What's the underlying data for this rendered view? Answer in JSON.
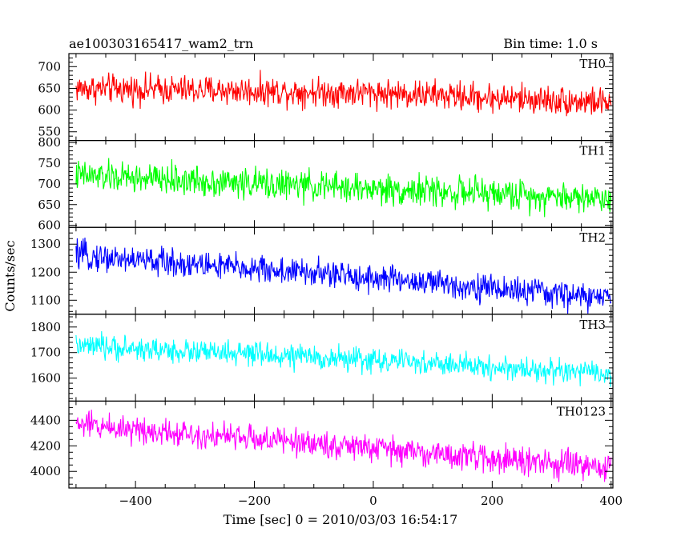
{
  "chart_data": {
    "type": "line",
    "title_left": "ae100303165417_wam2_trn",
    "title_right": "Bin time: 1.0 s",
    "xlabel": "Time [sec] 0 = 2010/03/03 16:54:17",
    "ylabel": "Counts/sec",
    "xlim": [
      -512,
      403
    ],
    "x_ticks": [
      -400,
      -200,
      0,
      200,
      400
    ],
    "x_tick_labels": [
      "−400",
      "−200",
      "0",
      "200",
      "400"
    ],
    "x_minor_step": 50,
    "grid": false,
    "legend": "none",
    "data_x_range": [
      -500,
      400
    ],
    "panels": [
      {
        "name": "TH0",
        "color": "#ff0000",
        "ylim": [
          530,
          730
        ],
        "ticks": [
          550,
          600,
          650,
          700
        ],
        "minor_step": 10,
        "trend": [
          [
            -500,
            650
          ],
          [
            0,
            640
          ],
          [
            400,
            617
          ]
        ],
        "spread": 50
      },
      {
        "name": "TH1",
        "color": "#00ff00",
        "ylim": [
          595,
          805
        ],
        "ticks": [
          600,
          650,
          700,
          750,
          800
        ],
        "minor_step": 10,
        "trend": [
          [
            -500,
            720
          ],
          [
            0,
            688
          ],
          [
            400,
            665
          ]
        ],
        "spread": 55
      },
      {
        "name": "TH2",
        "color": "#0000ff",
        "ylim": [
          1050,
          1360
        ],
        "ticks": [
          1100,
          1200,
          1300
        ],
        "minor_step": 20,
        "trend": [
          [
            -500,
            1260
          ],
          [
            0,
            1180
          ],
          [
            400,
            1105
          ]
        ],
        "spread": 75
      },
      {
        "name": "TH3",
        "color": "#00ffff",
        "ylim": [
          1510,
          1850
        ],
        "ticks": [
          1600,
          1700,
          1800
        ],
        "minor_step": 20,
        "trend": [
          [
            -500,
            1725
          ],
          [
            0,
            1670
          ],
          [
            400,
            1615
          ]
        ],
        "spread": 70
      },
      {
        "name": "TH0123",
        "color": "#ff00ff",
        "ylim": [
          3870,
          4550
        ],
        "ticks": [
          4000,
          4200,
          4400
        ],
        "minor_step": 50,
        "trend": [
          [
            -500,
            4370
          ],
          [
            0,
            4180
          ],
          [
            400,
            4020
          ]
        ],
        "spread": 160
      }
    ]
  }
}
